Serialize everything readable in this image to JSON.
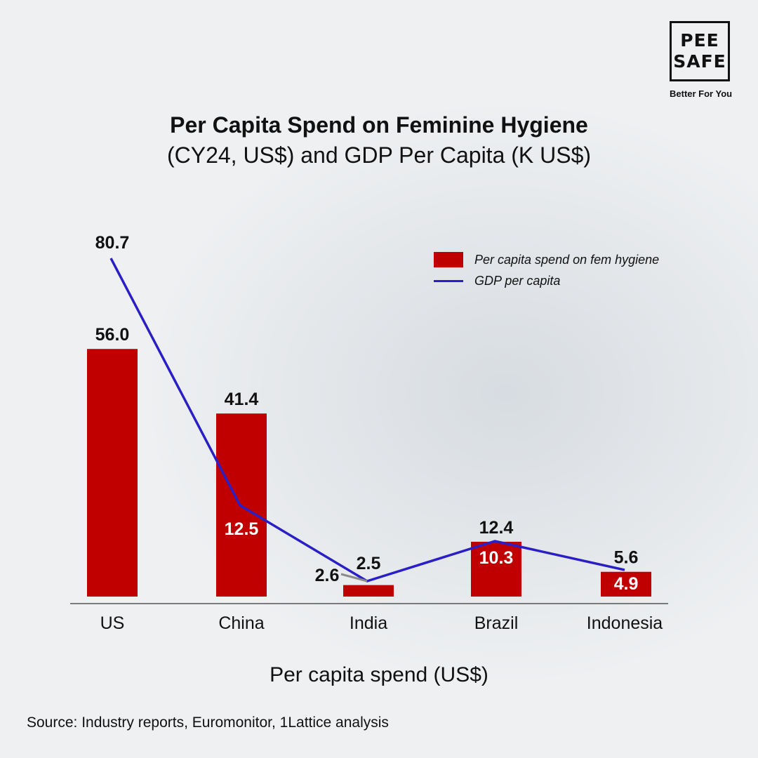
{
  "brand": {
    "logo_line1": "PEE",
    "logo_line2": "SAFE",
    "tagline": "Better For You"
  },
  "header": {
    "title": "Per Capita Spend on Feminine Hygiene",
    "subtitle": "(CY24, US$) and GDP Per Capita (K US$)"
  },
  "footer": {
    "source": "Source: Industry reports, Euromonitor, 1Lattice analysis"
  },
  "colors": {
    "bar": "#c00000",
    "line": "#2a1fc6",
    "axis": "#555555"
  },
  "chart_data": {
    "type": "bar",
    "title": "Per Capita Spend on Feminine Hygiene",
    "subtitle": "(CY24, US$) and GDP Per Capita (K US$)",
    "xlabel": "Per capita spend (US$)",
    "ylabel": "",
    "categories": [
      "US",
      "China",
      "India",
      "Brazil",
      "Indonesia"
    ],
    "ylim": [
      0,
      100
    ],
    "grid": false,
    "legend_position": "top-right",
    "series": [
      {
        "name": "Per capita spend on fem hygiene",
        "type": "bar",
        "values": [
          56.0,
          41.4,
          2.6,
          12.4,
          5.6
        ],
        "labels": [
          "56.0",
          "41.4",
          "2.6",
          "12.4",
          "5.6"
        ]
      },
      {
        "name": "GDP per capita",
        "type": "line",
        "values": [
          80.7,
          12.5,
          2.5,
          10.3,
          4.9
        ],
        "labels": [
          "80.7",
          "12.5",
          "2.5",
          "10.3",
          "4.9"
        ]
      }
    ]
  }
}
